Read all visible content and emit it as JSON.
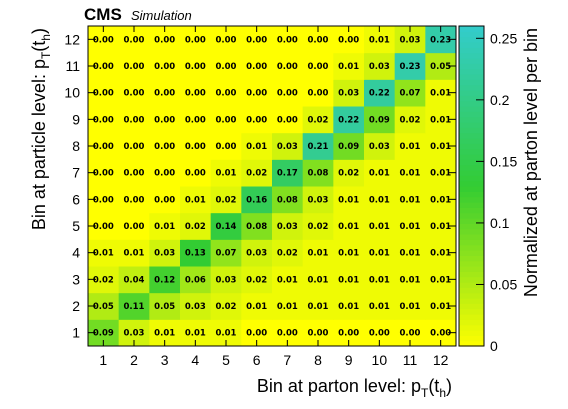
{
  "header": {
    "experiment": "CMS",
    "tag": "Simulation"
  },
  "chart_data": {
    "type": "heatmap",
    "xlabel_main": "Bin at parton level: p",
    "xlabel_sub_T": "T",
    "xlabel_paren_open": "(t",
    "xlabel_sub_h": "h",
    "xlabel_paren_close": ")",
    "ylabel_main": "Bin at particle level: p",
    "ylabel_sub_T": "T",
    "ylabel_paren_open": "(t",
    "ylabel_sub_h": "h",
    "ylabel_paren_close": ")",
    "zlabel": "Normalized at parton level per bin",
    "x_categories": [
      "1",
      "2",
      "3",
      "4",
      "5",
      "6",
      "7",
      "8",
      "9",
      "10",
      "11",
      "12"
    ],
    "y_categories": [
      "1",
      "2",
      "3",
      "4",
      "5",
      "6",
      "7",
      "8",
      "9",
      "10",
      "11",
      "12"
    ],
    "zlim": [
      0,
      0.26
    ],
    "z_ticks": [
      0,
      0.05,
      0.1,
      0.15,
      0.2,
      0.25
    ],
    "z_tick_labels": [
      "0",
      "0.05",
      "0.1",
      "0.15",
      "0.2",
      "0.25"
    ],
    "colors": {
      "low": "#ffff00",
      "mid": "#33cc33",
      "high": "#33cccc"
    },
    "values_by_y_from_bottom": [
      [
        0.09,
        0.03,
        0.01,
        0.01,
        0.01,
        0.0,
        0.0,
        0.0,
        0.0,
        0.0,
        0.0,
        0.0
      ],
      [
        0.05,
        0.11,
        0.05,
        0.03,
        0.02,
        0.01,
        0.01,
        0.01,
        0.01,
        0.01,
        0.01,
        0.01
      ],
      [
        0.02,
        0.04,
        0.12,
        0.06,
        0.03,
        0.02,
        0.01,
        0.01,
        0.01,
        0.01,
        0.01,
        0.01
      ],
      [
        0.01,
        0.01,
        0.03,
        0.13,
        0.07,
        0.03,
        0.02,
        0.01,
        0.01,
        0.01,
        0.01,
        0.01
      ],
      [
        0.0,
        0.0,
        0.01,
        0.02,
        0.14,
        0.08,
        0.03,
        0.02,
        0.01,
        0.01,
        0.01,
        0.01
      ],
      [
        0.0,
        0.0,
        0.0,
        0.01,
        0.02,
        0.16,
        0.08,
        0.03,
        0.01,
        0.01,
        0.01,
        0.01
      ],
      [
        0.0,
        0.0,
        0.0,
        0.0,
        0.01,
        0.02,
        0.17,
        0.08,
        0.02,
        0.01,
        0.01,
        0.01
      ],
      [
        0.0,
        0.0,
        0.0,
        0.0,
        0.0,
        0.01,
        0.03,
        0.21,
        0.09,
        0.03,
        0.01,
        0.01
      ],
      [
        0.0,
        0.0,
        0.0,
        0.0,
        0.0,
        0.0,
        0.0,
        0.02,
        0.22,
        0.09,
        0.02,
        0.01
      ],
      [
        0.0,
        0.0,
        0.0,
        0.0,
        0.0,
        0.0,
        0.0,
        0.0,
        0.03,
        0.22,
        0.07,
        0.01
      ],
      [
        0.0,
        0.0,
        0.0,
        0.0,
        0.0,
        0.0,
        0.0,
        0.0,
        0.01,
        0.03,
        0.23,
        0.05
      ],
      [
        0.0,
        0.0,
        0.0,
        0.0,
        0.0,
        0.0,
        0.0,
        0.0,
        0.0,
        0.01,
        0.03,
        0.23
      ]
    ],
    "grid": false,
    "legend": "colorbar-right"
  }
}
